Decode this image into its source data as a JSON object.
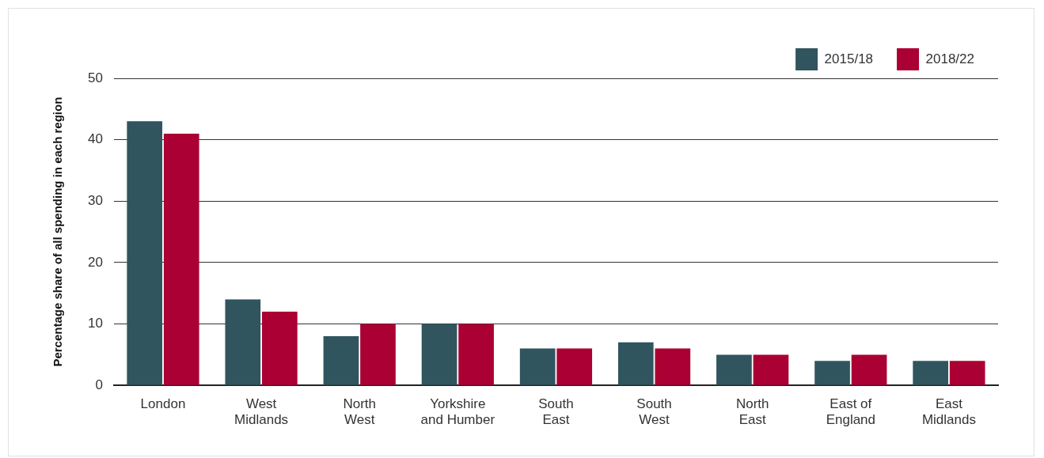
{
  "chart_data": {
    "type": "bar",
    "ylabel": "Percentage share of all spending in each region",
    "categories": [
      "London",
      "West Midlands",
      "North West",
      "Yorkshire and Humber",
      "South East",
      "South West",
      "North East",
      "East of England",
      "East Midlands"
    ],
    "series": [
      {
        "name": "2015/18",
        "color": "#30555e",
        "values": [
          43,
          14,
          8,
          10,
          6,
          7,
          5,
          4,
          4
        ]
      },
      {
        "name": "2018/22",
        "color": "#ab0033",
        "values": [
          41,
          12,
          10,
          10,
          6,
          6,
          5,
          5,
          4
        ]
      }
    ],
    "ylim": [
      0,
      50
    ],
    "yticks": [
      0,
      10,
      20,
      30,
      40,
      50
    ],
    "grid": "y",
    "legend": "top right"
  }
}
